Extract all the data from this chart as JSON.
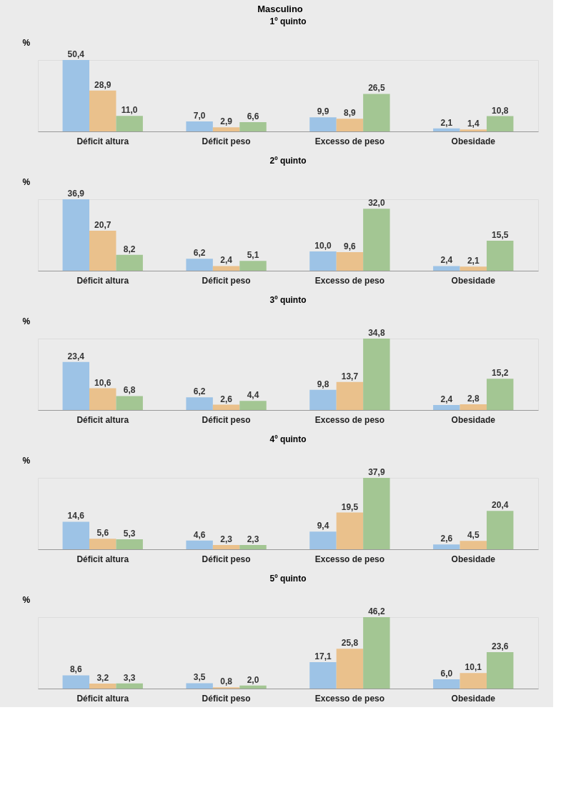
{
  "chart_data": [
    {
      "type": "bar",
      "title": "Masculino",
      "subtitle": "1º quinto",
      "ylabel": "%",
      "categories": [
        "Déficit altura",
        "Déficit peso",
        "Excesso de peso",
        "Obesidade"
      ],
      "grid": false,
      "legend": false,
      "series": [
        {
          "color": "#9dc3e6",
          "values": [
            50.4,
            7.0,
            9.9,
            2.1
          ],
          "value_labels": [
            "50,4",
            "7,0",
            "9,9",
            "2,1"
          ]
        },
        {
          "color": "#eac18c",
          "values": [
            28.9,
            2.9,
            8.9,
            1.4
          ],
          "value_labels": [
            "28,9",
            "2,9",
            "8,9",
            "1,4"
          ]
        },
        {
          "color": "#a3c693",
          "values": [
            11.0,
            6.6,
            26.5,
            10.8
          ],
          "value_labels": [
            "11,0",
            "6,6",
            "26,5",
            "10,8"
          ]
        }
      ]
    },
    {
      "type": "bar",
      "subtitle": "2º quinto",
      "ylabel": "%",
      "categories": [
        "Déficit altura",
        "Déficit peso",
        "Excesso de peso",
        "Obesidade"
      ],
      "grid": false,
      "legend": false,
      "series": [
        {
          "color": "#9dc3e6",
          "values": [
            36.9,
            6.2,
            10.0,
            2.4
          ],
          "value_labels": [
            "36,9",
            "6,2",
            "10,0",
            "2,4"
          ]
        },
        {
          "color": "#eac18c",
          "values": [
            20.7,
            2.4,
            9.6,
            2.1
          ],
          "value_labels": [
            "20,7",
            "2,4",
            "9,6",
            "2,1"
          ]
        },
        {
          "color": "#a3c693",
          "values": [
            8.2,
            5.1,
            32.0,
            15.5
          ],
          "value_labels": [
            "8,2",
            "5,1",
            "32,0",
            "15,5"
          ]
        }
      ]
    },
    {
      "type": "bar",
      "subtitle": "3º quinto",
      "ylabel": "%",
      "categories": [
        "Déficit altura",
        "Déficit peso",
        "Excesso de peso",
        "Obesidade"
      ],
      "grid": false,
      "legend": false,
      "series": [
        {
          "color": "#9dc3e6",
          "values": [
            23.4,
            6.2,
            9.8,
            2.4
          ],
          "value_labels": [
            "23,4",
            "6,2",
            "9,8",
            "2,4"
          ]
        },
        {
          "color": "#eac18c",
          "values": [
            10.6,
            2.6,
            13.7,
            2.8
          ],
          "value_labels": [
            "10,6",
            "2,6",
            "13,7",
            "2,8"
          ]
        },
        {
          "color": "#a3c693",
          "values": [
            6.8,
            4.4,
            34.8,
            15.2
          ],
          "value_labels": [
            "6,8",
            "4,4",
            "34,8",
            "15,2"
          ]
        }
      ]
    },
    {
      "type": "bar",
      "subtitle": "4º quinto",
      "ylabel": "%",
      "categories": [
        "Déficit altura",
        "Déficit peso",
        "Excesso de peso",
        "Obesidade"
      ],
      "grid": false,
      "legend": false,
      "series": [
        {
          "color": "#9dc3e6",
          "values": [
            14.6,
            4.6,
            9.4,
            2.6
          ],
          "value_labels": [
            "14,6",
            "4,6",
            "9,4",
            "2,6"
          ]
        },
        {
          "color": "#eac18c",
          "values": [
            5.6,
            2.3,
            19.5,
            4.5
          ],
          "value_labels": [
            "5,6",
            "2,3",
            "19,5",
            "4,5"
          ]
        },
        {
          "color": "#a3c693",
          "values": [
            5.3,
            2.3,
            37.9,
            20.4
          ],
          "value_labels": [
            "5,3",
            "2,3",
            "37,9",
            "20,4"
          ]
        }
      ]
    },
    {
      "type": "bar",
      "subtitle": "5º quinto",
      "ylabel": "%",
      "categories": [
        "Déficit altura",
        "Déficit peso",
        "Excesso de peso",
        "Obesidade"
      ],
      "grid": false,
      "legend": false,
      "series": [
        {
          "color": "#9dc3e6",
          "values": [
            8.6,
            3.5,
            17.1,
            6.0
          ],
          "value_labels": [
            "8,6",
            "3,5",
            "17,1",
            "6,0"
          ]
        },
        {
          "color": "#eac18c",
          "values": [
            3.2,
            0.8,
            25.8,
            10.1
          ],
          "value_labels": [
            "3,2",
            "0,8",
            "25,8",
            "10,1"
          ]
        },
        {
          "color": "#a3c693",
          "values": [
            3.3,
            2.0,
            46.2,
            23.6
          ],
          "value_labels": [
            "3,3",
            "2,0",
            "46,2",
            "23,6"
          ]
        }
      ]
    }
  ]
}
